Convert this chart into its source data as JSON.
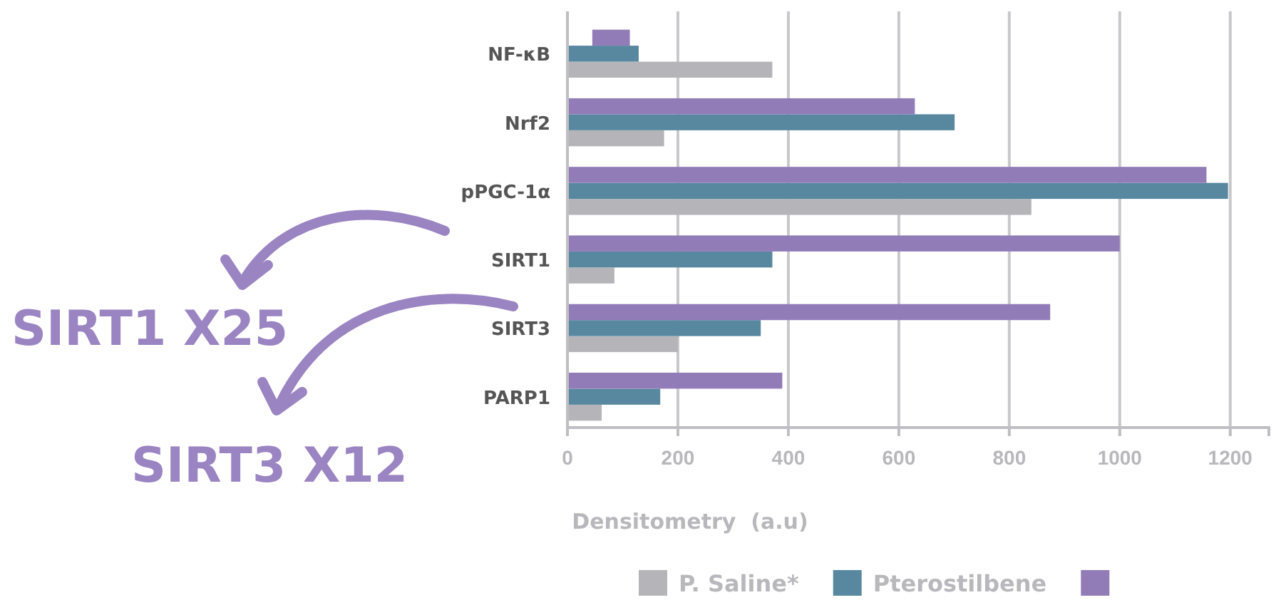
{
  "chart_data": {
    "type": "bar",
    "orientation": "horizontal",
    "xlabel": "Densitometry  (a.u)",
    "categories": [
      "NF-κB",
      "Nrf2",
      "pPGC-1α",
      "SIRT1",
      "SIRT3",
      "PARP1"
    ],
    "series": [
      {
        "name": "P. Saline*",
        "color": "#b5b5b9",
        "values": [
          371,
          175,
          840,
          85,
          200,
          62
        ]
      },
      {
        "name": "Pterostilbene",
        "color": "#5788a0",
        "values": [
          129,
          701,
          1196,
          371,
          350,
          168
        ]
      },
      {
        "color": "#927cb8",
        "values": [
          68,
          629,
          1157,
          1000,
          874,
          389
        ],
        "base": [
          45,
          0,
          0,
          0,
          0,
          0
        ]
      }
    ],
    "xlim": [
      0,
      1270
    ],
    "xticks": [
      0,
      200,
      400,
      600,
      800,
      1000,
      1200
    ],
    "grid": "x",
    "legend": "bottom",
    "annotations": [
      "SIRT1 X25",
      "SIRT3 X12"
    ]
  }
}
